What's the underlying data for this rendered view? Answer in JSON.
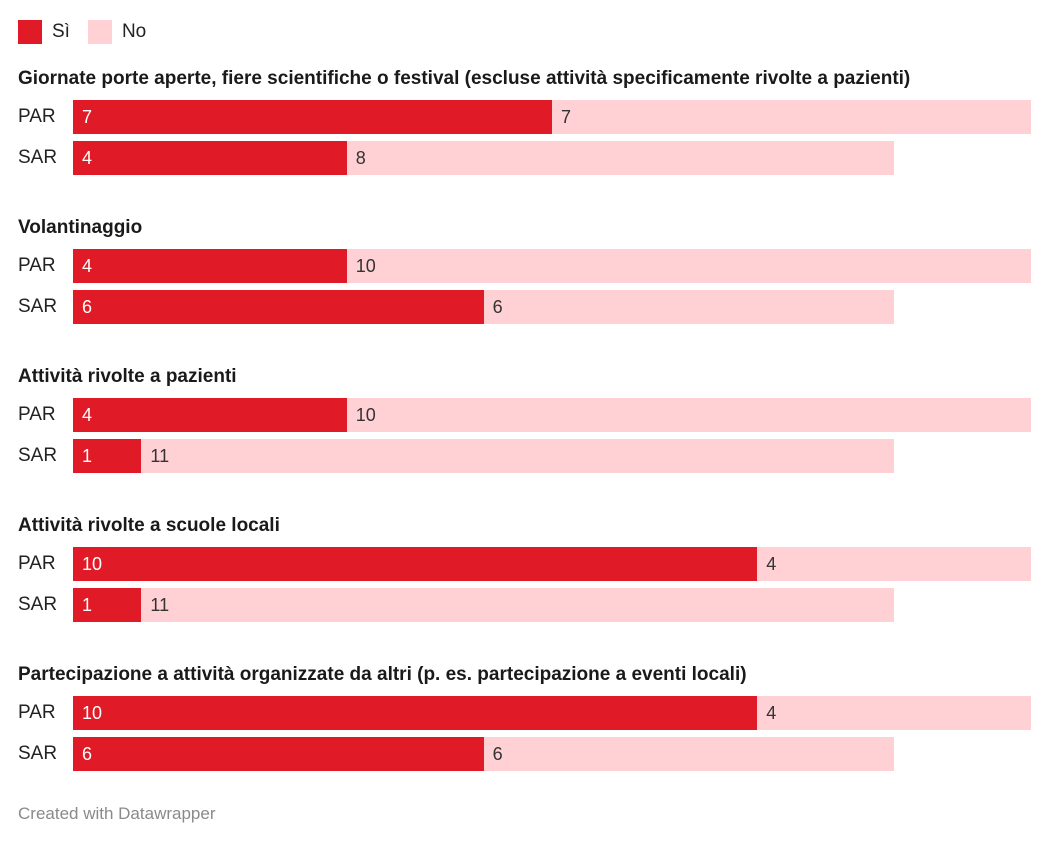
{
  "legend": {
    "yes_label": "Sì",
    "no_label": "No",
    "yes_color": "#e11a27",
    "no_color": "#ffd0d4"
  },
  "chart_data": {
    "type": "bar",
    "orientation": "horizontal",
    "stacked": true,
    "series_names": [
      "Sì",
      "No"
    ],
    "groups": [
      {
        "title": "Giornate porte aperte, fiere scientifiche o festival (escluse attività specificamente rivolte a pazienti)",
        "rows": [
          {
            "label": "PAR",
            "yes": 7,
            "no": 7
          },
          {
            "label": "SAR",
            "yes": 4,
            "no": 8
          }
        ]
      },
      {
        "title": "Volantinaggio",
        "rows": [
          {
            "label": "PAR",
            "yes": 4,
            "no": 10
          },
          {
            "label": "SAR",
            "yes": 6,
            "no": 6
          }
        ]
      },
      {
        "title": "Attività rivolte a pazienti",
        "rows": [
          {
            "label": "PAR",
            "yes": 4,
            "no": 10
          },
          {
            "label": "SAR",
            "yes": 1,
            "no": 11
          }
        ]
      },
      {
        "title": "Attività rivolte a scuole locali",
        "rows": [
          {
            "label": "PAR",
            "yes": 10,
            "no": 4
          },
          {
            "label": "SAR",
            "yes": 1,
            "no": 11
          }
        ]
      },
      {
        "title": "Partecipazione a attività organizzate da altri (p. es. partecipazione a eventi locali)",
        "rows": [
          {
            "label": "PAR",
            "yes": 10,
            "no": 4
          },
          {
            "label": "SAR",
            "yes": 6,
            "no": 6
          }
        ]
      }
    ]
  },
  "footer": {
    "credit": "Created with Datawrapper"
  }
}
